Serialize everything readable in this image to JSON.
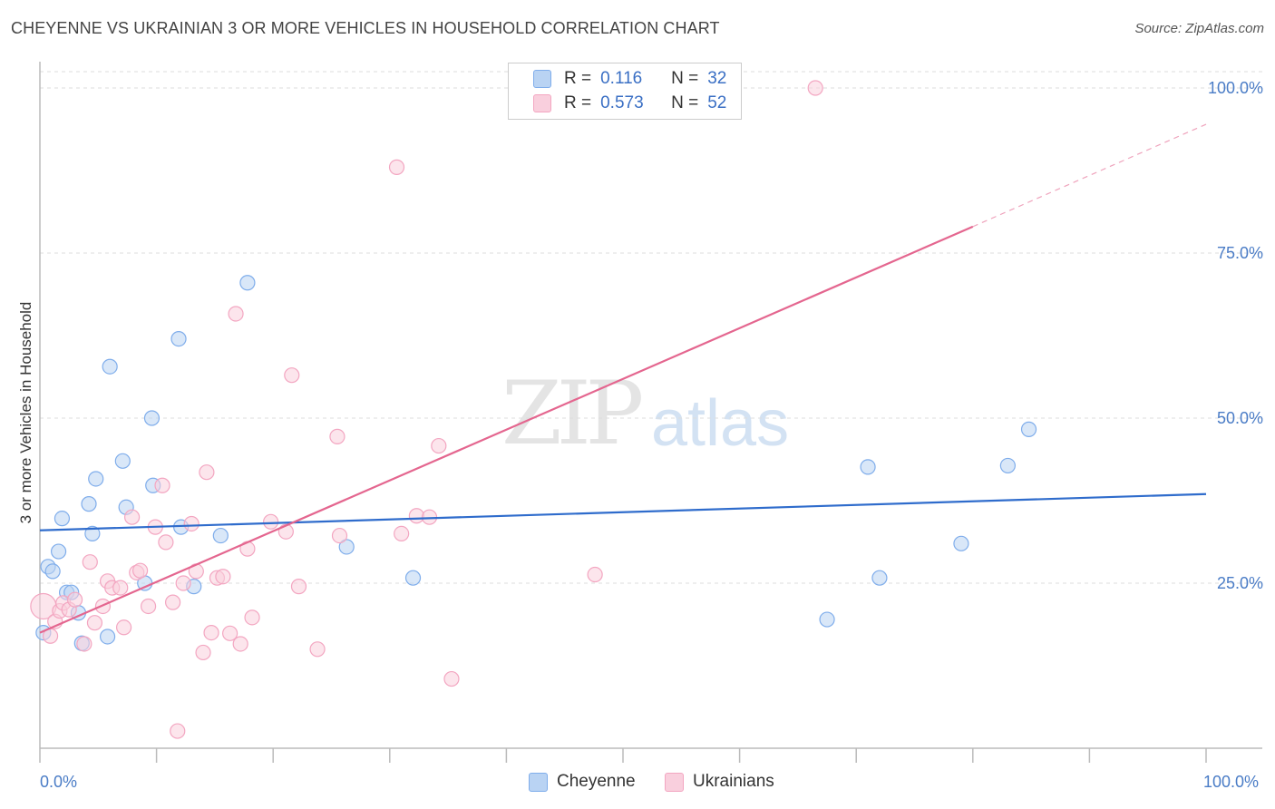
{
  "chart_data": {
    "type": "scatter",
    "title": "CHEYENNE VS UKRAINIAN 3 OR MORE VEHICLES IN HOUSEHOLD CORRELATION CHART",
    "source": "Source: ZipAtlas.com",
    "xlabel": "",
    "ylabel": "3 or more Vehicles in Household",
    "xlim": [
      0,
      100
    ],
    "ylim": [
      0,
      103
    ],
    "x_tick_labels": [
      "0.0%",
      "100.0%"
    ],
    "y_ticks": [
      25,
      50,
      75,
      100
    ],
    "y_tick_labels": [
      "25.0%",
      "50.0%",
      "75.0%",
      "100.0%"
    ],
    "watermark": {
      "left": "ZIP",
      "right": "atlas"
    },
    "legend": [
      {
        "r_label": "R =",
        "r_value": "0.116",
        "n_label": "N =",
        "n_value": "32"
      },
      {
        "r_label": "R =",
        "r_value": "0.573",
        "n_label": "N =",
        "n_value": "52"
      }
    ],
    "series": [
      {
        "name": "Cheyenne",
        "color": "#7fadeb",
        "fill": "#b9d3f3",
        "line_color": "#2f6ccc",
        "trend": {
          "x0": 0,
          "y0": 33.0,
          "x1": 100,
          "y1": 38.5
        },
        "points": [
          [
            0.3,
            17.5
          ],
          [
            0.7,
            27.5
          ],
          [
            1.1,
            26.8
          ],
          [
            1.6,
            29.8
          ],
          [
            1.9,
            34.8
          ],
          [
            2.3,
            23.6
          ],
          [
            2.7,
            23.6
          ],
          [
            3.3,
            20.5
          ],
          [
            3.6,
            15.9
          ],
          [
            4.2,
            37.0
          ],
          [
            4.5,
            32.5
          ],
          [
            4.8,
            40.8
          ],
          [
            5.8,
            16.9
          ],
          [
            6.0,
            57.8
          ],
          [
            7.1,
            43.5
          ],
          [
            7.4,
            36.5
          ],
          [
            9.0,
            25.0
          ],
          [
            9.6,
            50.0
          ],
          [
            9.7,
            39.8
          ],
          [
            11.9,
            62.0
          ],
          [
            12.1,
            33.5
          ],
          [
            13.2,
            24.5
          ],
          [
            15.5,
            32.2
          ],
          [
            17.8,
            70.5
          ],
          [
            26.3,
            30.5
          ],
          [
            32.0,
            25.8
          ],
          [
            67.5,
            19.5
          ],
          [
            71.0,
            42.6
          ],
          [
            72.0,
            25.8
          ],
          [
            79.0,
            31.0
          ],
          [
            83.0,
            42.8
          ],
          [
            84.8,
            48.3
          ]
        ]
      },
      {
        "name": "Ukrainians",
        "color": "#f3a6c1",
        "fill": "#f9cfdd",
        "line_color": "#e4668f",
        "trend": {
          "x0": 0,
          "y0": 17.5,
          "x1": 80.0,
          "y1": 79.0,
          "dash_to_x": 100,
          "dash_to_y": 94.5
        },
        "points": [
          [
            0.3,
            21.5
          ],
          [
            0.9,
            17.0
          ],
          [
            1.3,
            19.2
          ],
          [
            1.7,
            20.8
          ],
          [
            2.0,
            22.0
          ],
          [
            2.5,
            21.0
          ],
          [
            3.0,
            22.5
          ],
          [
            3.8,
            15.8
          ],
          [
            4.3,
            28.2
          ],
          [
            4.7,
            19.0
          ],
          [
            5.4,
            21.5
          ],
          [
            5.8,
            25.3
          ],
          [
            6.2,
            24.3
          ],
          [
            6.9,
            24.3
          ],
          [
            7.2,
            18.3
          ],
          [
            7.9,
            35.0
          ],
          [
            8.3,
            26.6
          ],
          [
            8.6,
            26.9
          ],
          [
            9.3,
            21.5
          ],
          [
            9.9,
            33.5
          ],
          [
            10.5,
            39.8
          ],
          [
            10.8,
            31.2
          ],
          [
            11.4,
            22.1
          ],
          [
            11.8,
            2.6
          ],
          [
            12.3,
            25.0
          ],
          [
            13.0,
            34.0
          ],
          [
            13.4,
            26.8
          ],
          [
            14.0,
            14.5
          ],
          [
            14.3,
            41.8
          ],
          [
            14.7,
            17.5
          ],
          [
            15.2,
            25.8
          ],
          [
            15.7,
            26.0
          ],
          [
            16.3,
            17.4
          ],
          [
            16.8,
            65.8
          ],
          [
            17.2,
            15.8
          ],
          [
            17.8,
            30.2
          ],
          [
            18.2,
            19.8
          ],
          [
            19.8,
            34.3
          ],
          [
            21.1,
            32.8
          ],
          [
            21.6,
            56.5
          ],
          [
            22.2,
            24.5
          ],
          [
            23.8,
            15.0
          ],
          [
            25.5,
            47.2
          ],
          [
            25.7,
            32.2
          ],
          [
            30.6,
            88.0
          ],
          [
            31.0,
            32.5
          ],
          [
            32.3,
            35.2
          ],
          [
            33.4,
            35.0
          ],
          [
            34.2,
            45.8
          ],
          [
            35.3,
            10.5
          ],
          [
            47.6,
            26.3
          ],
          [
            66.5,
            100.0
          ]
        ]
      }
    ]
  }
}
